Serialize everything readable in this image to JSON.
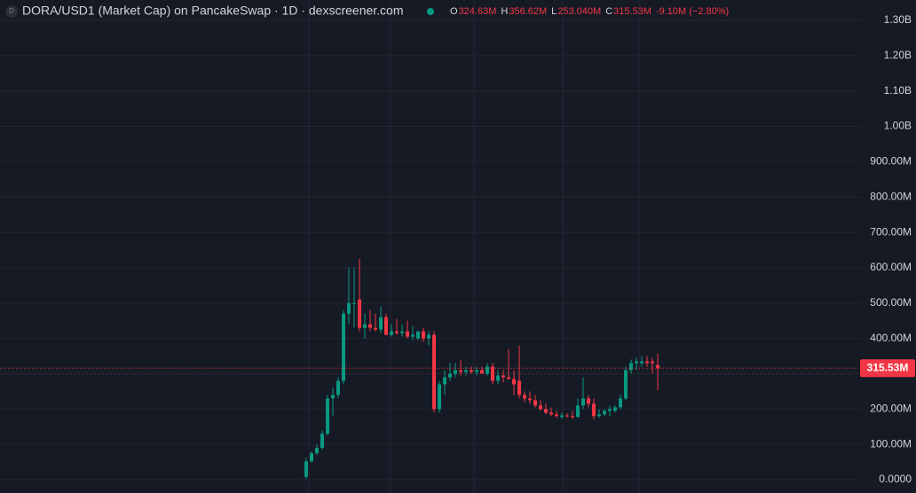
{
  "header": {
    "title": "DORA/USD1 (Market Cap) on PancakeSwap · 1D · dexscreener.com",
    "ohlc": [
      {
        "key": "O",
        "value": "324.63M"
      },
      {
        "key": "H",
        "value": "356.62M"
      },
      {
        "key": "L",
        "value": "253.040M"
      },
      {
        "key": "C",
        "value": "315.53M"
      }
    ],
    "change": "-9.10M (−2.80%)"
  },
  "chart_data": {
    "type": "candlestick",
    "up_color": "#089981",
    "down_color": "#f23645",
    "grid": true,
    "ylim": [
      -37600000,
      1357700000
    ],
    "yticks": [
      {
        "value": 0,
        "label": "0.0000"
      },
      {
        "value": 100000000,
        "label": "100.00M"
      },
      {
        "value": 200000000,
        "label": "200.00M"
      },
      {
        "value": 300000000,
        "label": "300.00M"
      },
      {
        "value": 400000000,
        "label": "400.00M"
      },
      {
        "value": 500000000,
        "label": "500.00M"
      },
      {
        "value": 600000000,
        "label": "600.00M"
      },
      {
        "value": 700000000,
        "label": "700.00M"
      },
      {
        "value": 800000000,
        "label": "800.00M"
      },
      {
        "value": 900000000,
        "label": "900.00M"
      },
      {
        "value": 1000000000,
        "label": "1.00B"
      },
      {
        "value": 1100000000,
        "label": "1.10B"
      },
      {
        "value": 1200000000,
        "label": "1.20B"
      },
      {
        "value": 1300000000,
        "label": "1.30B"
      }
    ],
    "last_price": {
      "value": 315530000,
      "label": "315.53M"
    },
    "open": [
      8000000,
      52000000,
      75000000,
      90000000,
      130000000,
      230000000,
      240000000,
      280000000,
      470000000,
      500000000,
      510000000,
      430000000,
      440000000,
      430000000,
      425000000,
      460000000,
      410000000,
      420000000,
      415000000,
      420000000,
      405000000,
      400000000,
      420000000,
      400000000,
      410000000,
      200000000,
      270000000,
      290000000,
      300000000,
      310000000,
      305000000,
      310000000,
      305000000,
      310000000,
      300000000,
      320000000,
      280000000,
      295000000,
      290000000,
      285000000,
      280000000,
      240000000,
      230000000,
      225000000,
      210000000,
      200000000,
      190000000,
      185000000,
      178000000,
      182000000,
      180000000,
      178000000,
      210000000,
      230000000,
      215000000,
      180000000,
      185000000,
      195000000,
      195000000,
      205000000,
      230000000,
      310000000,
      330000000,
      330000000,
      335000000,
      335000000,
      324630000
    ],
    "high": [
      62000000,
      80000000,
      100000000,
      140000000,
      240000000,
      260000000,
      290000000,
      480000000,
      600000000,
      600000000,
      625000000,
      470000000,
      480000000,
      470000000,
      490000000,
      470000000,
      440000000,
      455000000,
      440000000,
      450000000,
      435000000,
      420000000,
      430000000,
      420000000,
      420000000,
      280000000,
      310000000,
      330000000,
      330000000,
      340000000,
      320000000,
      320000000,
      320000000,
      320000000,
      330000000,
      330000000,
      310000000,
      310000000,
      370000000,
      310000000,
      380000000,
      250000000,
      250000000,
      240000000,
      225000000,
      215000000,
      205000000,
      195000000,
      190000000,
      188000000,
      195000000,
      230000000,
      290000000,
      240000000,
      230000000,
      200000000,
      200000000,
      210000000,
      210000000,
      240000000,
      320000000,
      340000000,
      345000000,
      350000000,
      350000000,
      345000000,
      356620000
    ],
    "low": [
      2000000,
      48000000,
      70000000,
      85000000,
      125000000,
      180000000,
      230000000,
      270000000,
      440000000,
      430000000,
      420000000,
      400000000,
      420000000,
      420000000,
      415000000,
      410000000,
      405000000,
      410000000,
      405000000,
      400000000,
      395000000,
      395000000,
      390000000,
      380000000,
      190000000,
      190000000,
      240000000,
      280000000,
      290000000,
      295000000,
      295000000,
      300000000,
      295000000,
      300000000,
      295000000,
      270000000,
      270000000,
      275000000,
      285000000,
      240000000,
      230000000,
      220000000,
      215000000,
      205000000,
      195000000,
      185000000,
      180000000,
      175000000,
      172000000,
      175000000,
      172000000,
      175000000,
      200000000,
      205000000,
      170000000,
      175000000,
      180000000,
      180000000,
      190000000,
      200000000,
      225000000,
      300000000,
      310000000,
      320000000,
      320000000,
      300000000,
      253040000
    ],
    "close": [
      52000000,
      75000000,
      90000000,
      130000000,
      230000000,
      240000000,
      280000000,
      470000000,
      500000000,
      500000000,
      430000000,
      440000000,
      430000000,
      425000000,
      460000000,
      410000000,
      420000000,
      415000000,
      420000000,
      405000000,
      410000000,
      420000000,
      400000000,
      410000000,
      200000000,
      270000000,
      290000000,
      300000000,
      310000000,
      305000000,
      310000000,
      305000000,
      310000000,
      300000000,
      320000000,
      280000000,
      295000000,
      290000000,
      285000000,
      270000000,
      240000000,
      230000000,
      225000000,
      210000000,
      200000000,
      190000000,
      185000000,
      180000000,
      182000000,
      180000000,
      178000000,
      210000000,
      230000000,
      215000000,
      180000000,
      185000000,
      195000000,
      200000000,
      205000000,
      230000000,
      310000000,
      330000000,
      335000000,
      335000000,
      330000000,
      330000000,
      315530000
    ]
  }
}
